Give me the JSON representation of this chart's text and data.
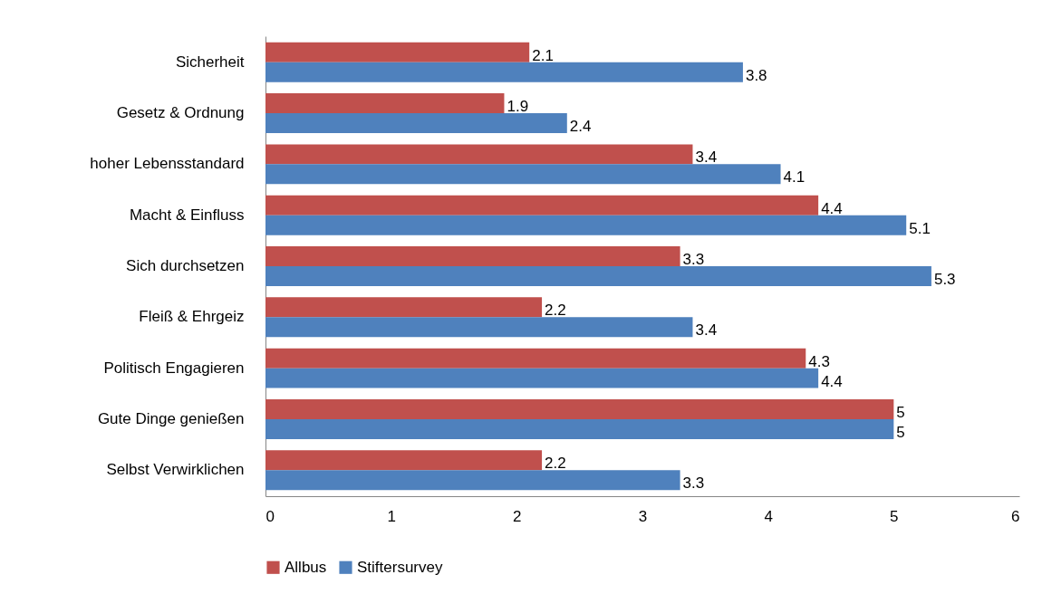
{
  "chart_data": {
    "type": "bar",
    "orientation": "horizontal",
    "categories": [
      "Sicherheit",
      "Gesetz & Ordnung",
      "hoher Lebensstandard",
      "Macht & Einfluss",
      "Sich durchsetzen",
      "Fleiß & Ehrgeiz",
      "Politisch Engagieren",
      "Gute Dinge genießen",
      "Selbst Verwirklichen"
    ],
    "series": [
      {
        "name": "Allbus",
        "color": "#c0504d",
        "values": [
          2.1,
          1.9,
          3.4,
          4.4,
          3.3,
          2.2,
          4.3,
          5,
          2.2
        ]
      },
      {
        "name": "Stiftersurvey",
        "color": "#4f81bd",
        "values": [
          3.8,
          2.4,
          4.1,
          5.1,
          5.3,
          3.4,
          4.4,
          5,
          3.3
        ]
      }
    ],
    "xlim": [
      0,
      6
    ],
    "xticks": [
      0,
      1,
      2,
      3,
      4,
      5,
      6
    ],
    "data_labels": true,
    "grid": false,
    "legend": "bottom"
  }
}
